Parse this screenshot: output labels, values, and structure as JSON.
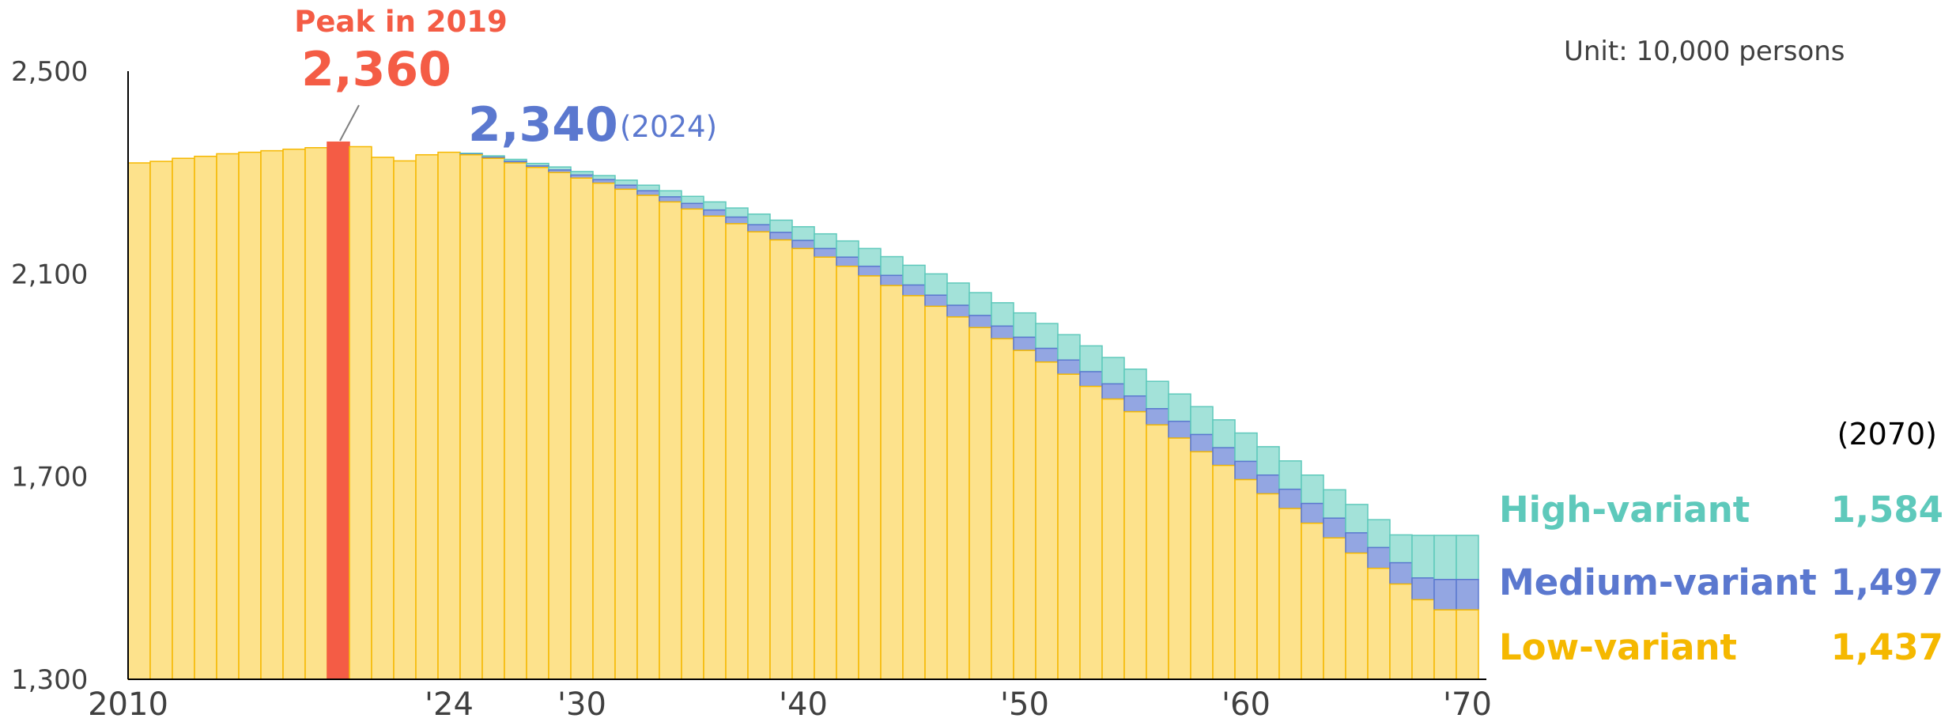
{
  "chart_data": {
    "type": "bar",
    "unit_label": "Unit: 10,000 persons",
    "ylim": [
      1300,
      2500
    ],
    "y_ticks": [
      {
        "value": 1300,
        "label": "1,300"
      },
      {
        "value": 1700,
        "label": "1,700"
      },
      {
        "value": 2100,
        "label": "2,100"
      },
      {
        "value": 2500,
        "label": "2,500"
      }
    ],
    "x_ticks": [
      {
        "year": 2010,
        "label": "2010"
      },
      {
        "year": 2024,
        "label": "'24"
      },
      {
        "year": 2030,
        "label": "'30"
      },
      {
        "year": 2040,
        "label": "'40"
      },
      {
        "year": 2050,
        "label": "'50"
      },
      {
        "year": 2060,
        "label": "'60"
      },
      {
        "year": 2070,
        "label": "'70"
      }
    ],
    "years": [
      2010,
      2011,
      2012,
      2013,
      2014,
      2015,
      2016,
      2017,
      2018,
      2019,
      2020,
      2021,
      2022,
      2023,
      2024,
      2025,
      2026,
      2027,
      2028,
      2029,
      2030,
      2031,
      2032,
      2033,
      2034,
      2035,
      2036,
      2037,
      2038,
      2039,
      2040,
      2041,
      2042,
      2043,
      2044,
      2045,
      2046,
      2047,
      2048,
      2049,
      2050,
      2051,
      2052,
      2053,
      2054,
      2055,
      2056,
      2057,
      2058,
      2059,
      2060,
      2061,
      2062,
      2063,
      2064,
      2065,
      2066,
      2067,
      2068,
      2069,
      2070
    ],
    "series": [
      {
        "name": "High-variant",
        "final_label": "1,584",
        "values": [
          2319,
          2322,
          2328,
          2332,
          2337,
          2340,
          2343,
          2346,
          2349,
          2360,
          2351,
          2330,
          2323,
          2335,
          2340,
          2338,
          2333,
          2326,
          2318,
          2311,
          2302,
          2294,
          2285,
          2275,
          2264,
          2253,
          2242,
          2230,
          2218,
          2206,
          2193,
          2179,
          2165,
          2150,
          2134,
          2117,
          2100,
          2082,
          2063,
          2043,
          2023,
          2002,
          1980,
          1958,
          1935,
          1912,
          1888,
          1863,
          1838,
          1812,
          1786,
          1759,
          1731,
          1703,
          1674,
          1645,
          1615,
          1585,
          1584,
          1584,
          1584
        ]
      },
      {
        "name": "Medium-variant",
        "final_label": "1,497",
        "values": [
          2319,
          2322,
          2328,
          2332,
          2337,
          2340,
          2343,
          2346,
          2349,
          2360,
          2351,
          2330,
          2323,
          2335,
          2340,
          2336,
          2330,
          2322,
          2313,
          2305,
          2295,
          2286,
          2275,
          2264,
          2252,
          2239,
          2226,
          2212,
          2197,
          2182,
          2166,
          2150,
          2133,
          2115,
          2097,
          2078,
          2058,
          2038,
          2018,
          1997,
          1975,
          1953,
          1930,
          1907,
          1883,
          1859,
          1834,
          1809,
          1783,
          1757,
          1730,
          1703,
          1675,
          1647,
          1618,
          1589,
          1560,
          1530,
          1500,
          1497,
          1497
        ]
      },
      {
        "name": "Low-variant",
        "final_label": "1,437",
        "values": [
          2319,
          2322,
          2328,
          2332,
          2337,
          2340,
          2343,
          2346,
          2349,
          2360,
          2351,
          2330,
          2323,
          2335,
          2340,
          2335,
          2328,
          2319,
          2310,
          2300,
          2289,
          2279,
          2267,
          2255,
          2242,
          2228,
          2214,
          2199,
          2183,
          2167,
          2150,
          2133,
          2115,
          2096,
          2077,
          2057,
          2036,
          2015,
          1994,
          1972,
          1949,
          1926,
          1902,
          1878,
          1853,
          1828,
          1802,
          1776,
          1749,
          1722,
          1694,
          1666,
          1637,
          1608,
          1579,
          1549,
          1519,
          1488,
          1457,
          1437,
          1437
        ]
      }
    ],
    "annotations": {
      "peak_title": "Peak in 2019",
      "peak_value": "2,360",
      "current_value": "2,340",
      "current_year": "(2024)",
      "final_year": "(2070)"
    },
    "colors": {
      "high": "#5ec9bb",
      "high_fill": "#a3e2d9",
      "medium": "#5b78cf",
      "medium_fill": "#93a6e2",
      "low": "#f5b800",
      "low_fill": "#fde28c",
      "peak": "#f45c45",
      "axis": "#000000"
    },
    "grid": false,
    "legend_position": "right"
  }
}
